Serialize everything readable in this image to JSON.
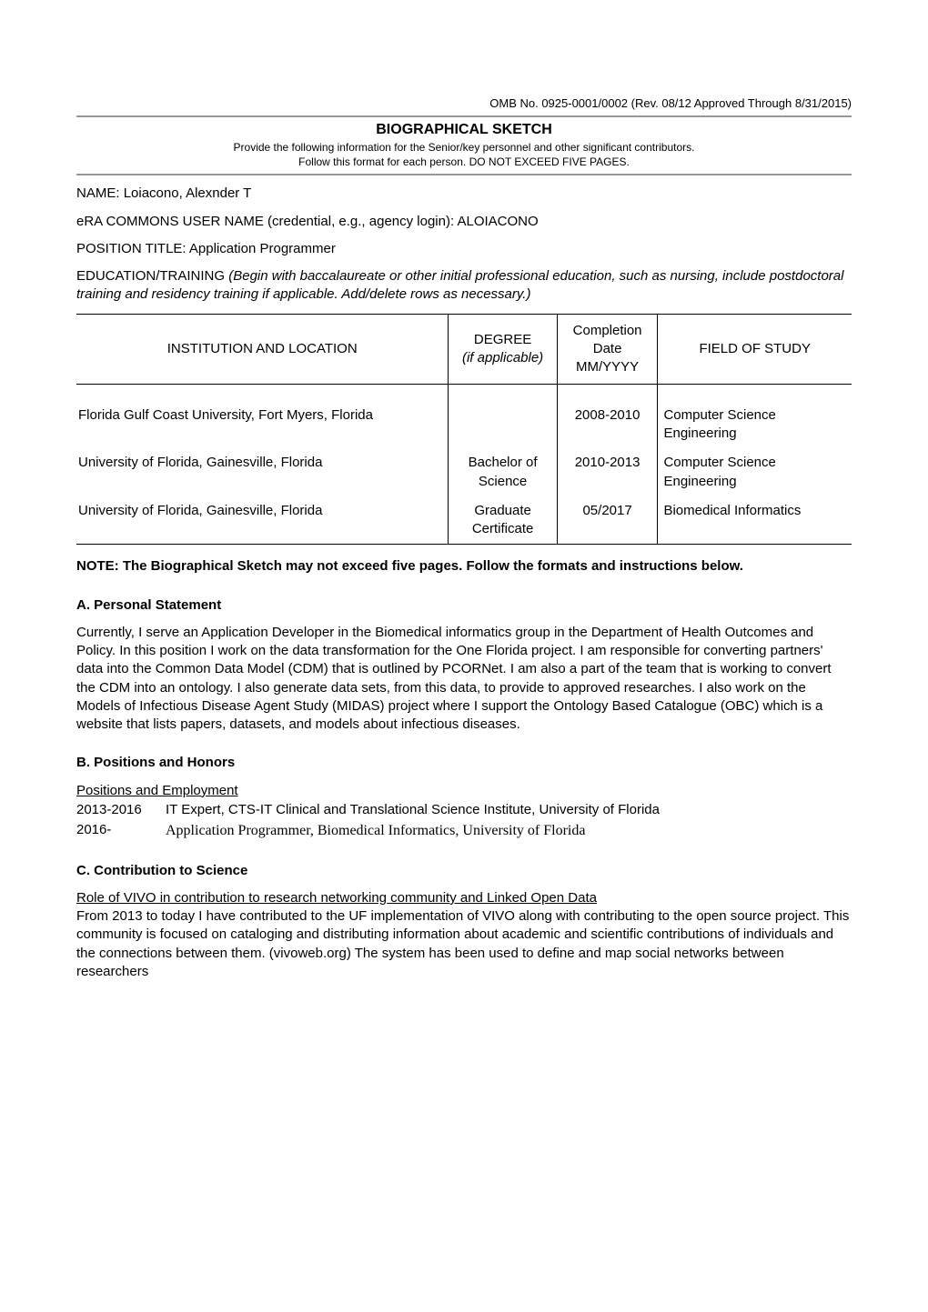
{
  "header": {
    "omb_line": "OMB No. 0925-0001/0002 (Rev. 08/12 Approved Through 8/31/2015)",
    "title": "BIOGRAPHICAL SKETCH",
    "subtitle1": "Provide the following information for the Senior/key personnel and other significant contributors.",
    "subtitle2": "Follow this format for each person.  DO NOT EXCEED FIVE PAGES."
  },
  "info": {
    "name_label": "NAME: ",
    "name_value": "Loiacono, Alexnder T",
    "era_label": "eRA COMMONS USER NAME (credential, e.g., agency login): ",
    "era_value": "ALOIACONO",
    "position_label": "POSITION TITLE: ",
    "position_value": "Application Programmer",
    "edu_label": "EDUCATION/TRAINING ",
    "edu_italic": "(Begin with baccalaureate or other initial professional education, such as nursing, include postdoctoral training and residency training if applicable. Add/delete rows as necessary.)"
  },
  "education": {
    "headers": {
      "institution": "INSTITUTION AND LOCATION",
      "degree": "DEGREE",
      "degree_note": "(if applicable)",
      "completion": "Completion Date MM/YYYY",
      "field": "FIELD OF STUDY"
    },
    "rows": [
      {
        "institution": "Florida Gulf Coast University, Fort Myers, Florida",
        "degree": "",
        "date": "2008-2010",
        "field": "Computer Science Engineering"
      },
      {
        "institution": "University of Florida, Gainesville, Florida",
        "degree": "Bachelor of Science",
        "date": "2010-2013",
        "field": "Computer Science Engineering"
      },
      {
        "institution": "University of Florida, Gainesville, Florida",
        "degree": "Graduate Certificate",
        "date": "05/2017",
        "field": "Biomedical Informatics"
      }
    ]
  },
  "note_text": "NOTE: The Biographical Sketch may not exceed five pages. Follow the formats and instructions below.",
  "sections": {
    "a": {
      "heading": "A.  Personal Statement",
      "body": "Currently, I serve an Application Developer in the Biomedical informatics group in the Department of Health Outcomes and Policy. In this position I work on the data transformation for the One Florida project. I am responsible for converting partners' data into the Common Data Model (CDM) that is outlined by PCORNet. I am also a part of the team that is working to convert the CDM into an ontology. I also generate data sets, from this data, to provide to approved researches. I also work on the Models of Infectious Disease Agent Study (MIDAS) project where I support the Ontology Based Catalogue (OBC) which is a website that lists papers, datasets, and models about infectious diseases."
    },
    "b": {
      "heading": "B.  Positions and Honors",
      "subtitle": "Positions and Employment",
      "positions": [
        {
          "years": "2013-2016",
          "desc": "IT Expert, CTS-IT Clinical and Translational Science Institute, University of Florida"
        },
        {
          "years": "2016-",
          "desc": "Application Programmer, Biomedical Informatics, University of Florida"
        }
      ]
    },
    "c": {
      "heading": "C.  Contribution to Science",
      "subtitle": "Role of VIVO in contribution to research networking community and Linked Open Data",
      "body": "From 2013 to today I have contributed to the UF implementation of VIVO along with contributing to the open source project. This community is focused on cataloging and distributing information about academic and scientific contributions of individuals and the connections between them. (vivoweb.org) The system has been used to define and map social networks between researchers"
    }
  }
}
